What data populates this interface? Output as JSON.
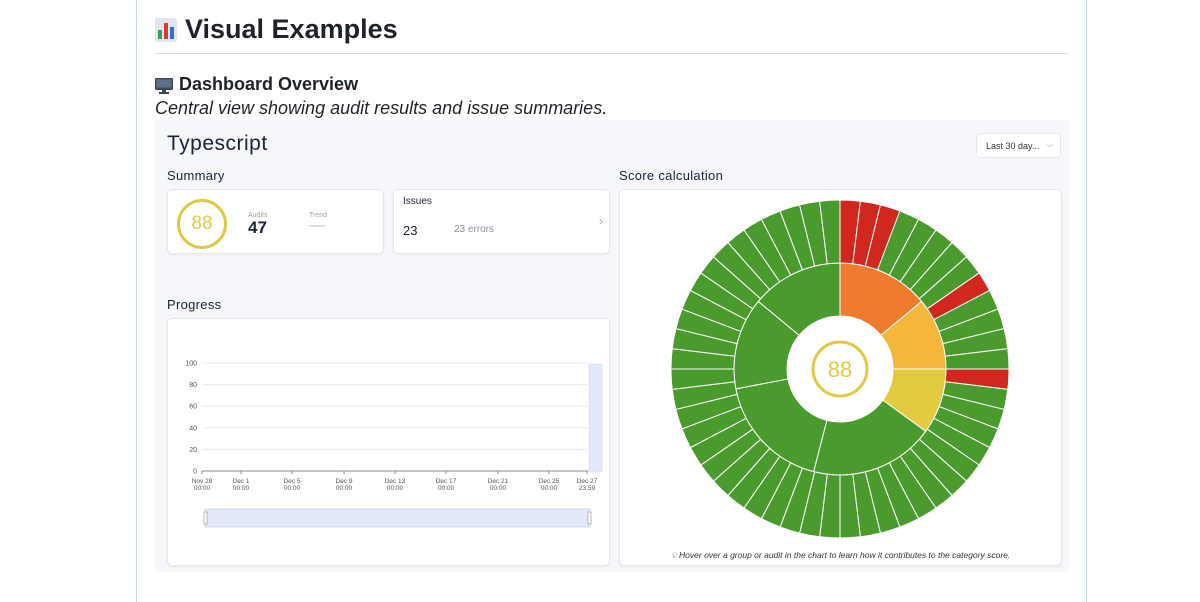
{
  "doc": {
    "heading": "Visual Examples",
    "subheading": "Dashboard Overview",
    "description": "Central view showing audit results and issue summaries."
  },
  "app": {
    "title": "Typescript",
    "range_select": "Last 30 day...",
    "summary_label": "Summary",
    "score": "88",
    "audits_label": "Audits",
    "audits_value": "47",
    "trend_label": "Trend",
    "trend_value": "—",
    "issues_label": "Issues",
    "issues_count": "23",
    "issues_errors": "23 errors",
    "progress_label": "Progress",
    "score_calc_label": "Score calculation",
    "sunburst_center": "88",
    "hint": "Hover over a group or audit in the chart to learn how it contributes to the category score."
  },
  "colors": {
    "green": "#4a9a2e",
    "red": "#d0281e",
    "orange": "#ef7b2f",
    "amber": "#f5b63c",
    "yellow": "#e2cb3f",
    "score_ring": "#e2c845"
  },
  "chart_data": [
    {
      "type": "line",
      "title": "",
      "x": [
        "Nov 28 00:00",
        "Dec 1 00:00",
        "Dec 5 00:00",
        "Dec 9 00:00",
        "Dec 13 00:00",
        "Dec 17 00:00",
        "Dec 21 00:00",
        "Dec 25 00:00",
        "Dec 27 23:59"
      ],
      "ylim": [
        0,
        100
      ],
      "yticks": [
        "0",
        "20",
        "40",
        "60",
        "80",
        "100"
      ],
      "xticks": [
        [
          "Nov 28",
          "00:00"
        ],
        [
          "Dec 1",
          "00:00"
        ],
        [
          "Dec 5",
          "00:00"
        ],
        [
          "Dec 9",
          "00:00"
        ],
        [
          "Dec 13",
          "00:00"
        ],
        [
          "Dec 17",
          "00:00"
        ],
        [
          "Dec 21",
          "00:00"
        ],
        [
          "Dec 25",
          "00:00"
        ],
        [
          "Dec 27",
          "23:59"
        ]
      ],
      "series": [],
      "grid": true
    },
    {
      "type": "sunburst",
      "center_label": "88",
      "middle_ring": [
        "orange",
        "amber",
        "yellow",
        "green",
        "green",
        "green",
        "green"
      ],
      "middle_ring_values": [
        14,
        11,
        10,
        19,
        18,
        14,
        14
      ],
      "outer_ring": [
        "red",
        "red",
        "red",
        "green",
        "green",
        "green",
        "green",
        "green",
        "red",
        "green",
        "green",
        "green",
        "green",
        "red",
        "green",
        "green",
        "green",
        "green",
        "green",
        "green",
        "green",
        "green",
        "green",
        "green",
        "green",
        "green",
        "green",
        "green",
        "green",
        "green",
        "green",
        "green",
        "green",
        "green",
        "green",
        "green",
        "green",
        "green",
        "green",
        "green",
        "green",
        "green",
        "green",
        "green",
        "green",
        "green",
        "green",
        "green",
        "green",
        "green",
        "green",
        "green"
      ]
    }
  ]
}
